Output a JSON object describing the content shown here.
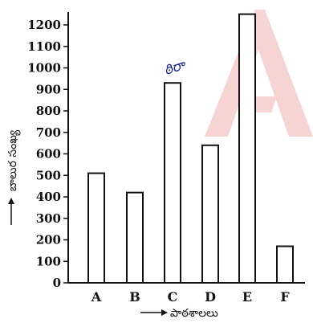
{
  "chart_data": {
    "type": "bar",
    "categories": [
      "A",
      "B",
      "C",
      "D",
      "E",
      "F"
    ],
    "values": [
      510,
      420,
      930,
      640,
      1250,
      170
    ],
    "xlabel": "పాఠశాలలు",
    "ylabel": "బాలుర సంఖ్య",
    "ylim": [
      0,
      1250
    ],
    "yticks": [
      0,
      100,
      200,
      300,
      400,
      500,
      600,
      700,
      800,
      900,
      1000,
      1100,
      1200
    ],
    "annotations": [
      {
        "category": "C",
        "text": "ఠిరా"
      }
    ],
    "grid": false,
    "legend": "none",
    "colors": {
      "bar_fill": "#ffffff",
      "bar_stroke": "#111111",
      "axis": "#111111",
      "annotation": "#1a2a8a",
      "watermark": "#f2b8b8"
    }
  },
  "watermark": {
    "icon": "triangle-a-logo-icon"
  }
}
